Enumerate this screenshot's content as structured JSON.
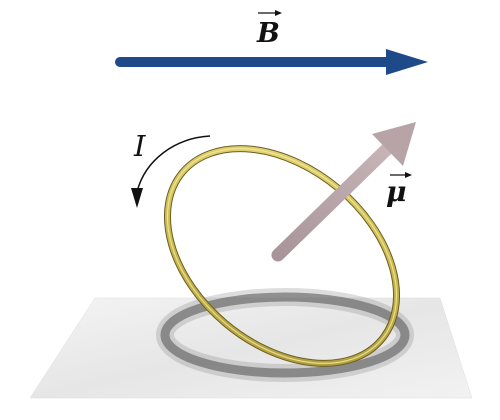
{
  "labels": {
    "field": "B",
    "moment": "μ",
    "current": "I"
  },
  "colors": {
    "field_arrow": "#1f4a8a",
    "moment_arrow": "#b8a3a6",
    "loop": "#c9b84a",
    "current_arrow": "#111111",
    "surface": "#ebebeb"
  },
  "icons": {
    "field": "right-arrow-icon",
    "moment": "diagonal-arrow-icon",
    "current": "curved-arrow-icon"
  }
}
